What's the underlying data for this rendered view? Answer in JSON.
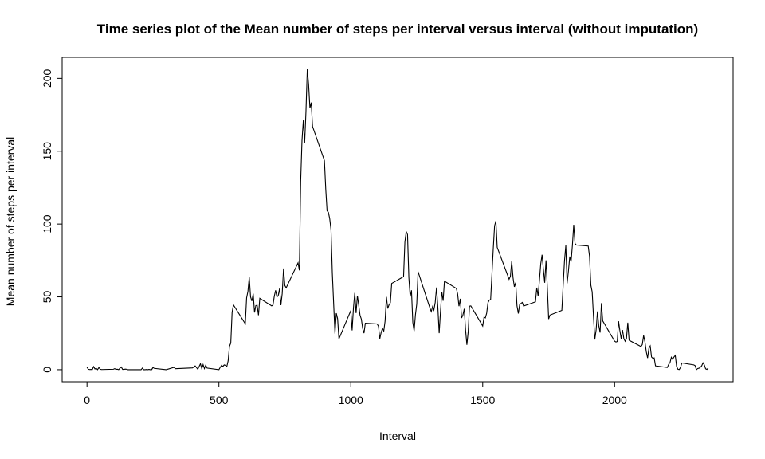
{
  "chart_data": {
    "type": "line",
    "title": "Time series plot of the Mean number of steps per interval versus interval (without imputation)",
    "xlabel": "Interval",
    "ylabel": "Mean number of steps per interval",
    "color": "#000000",
    "xlim": [
      -94.2,
      2449.2
    ],
    "ylim": [
      -8.25,
      214.42
    ],
    "xticks": [
      0,
      500,
      1000,
      1500,
      2000
    ],
    "yticks": [
      0,
      50,
      100,
      150,
      200
    ],
    "x": [
      0,
      5,
      10,
      15,
      20,
      25,
      30,
      35,
      40,
      45,
      50,
      55,
      100,
      105,
      110,
      115,
      120,
      125,
      130,
      135,
      140,
      145,
      150,
      155,
      200,
      205,
      210,
      215,
      220,
      225,
      230,
      235,
      240,
      245,
      250,
      255,
      300,
      330,
      335,
      400,
      410,
      420,
      430,
      435,
      440,
      445,
      450,
      455,
      500,
      505,
      510,
      515,
      520,
      525,
      530,
      535,
      540,
      545,
      550,
      555,
      600,
      605,
      610,
      615,
      620,
      625,
      630,
      635,
      640,
      645,
      650,
      655,
      700,
      705,
      710,
      715,
      720,
      725,
      730,
      735,
      740,
      745,
      750,
      755,
      800,
      805,
      810,
      815,
      820,
      825,
      830,
      835,
      840,
      845,
      850,
      855,
      900,
      905,
      910,
      915,
      920,
      925,
      930,
      935,
      940,
      945,
      950,
      955,
      1000,
      1005,
      1010,
      1015,
      1020,
      1025,
      1030,
      1035,
      1040,
      1045,
      1050,
      1055,
      1100,
      1105,
      1110,
      1115,
      1120,
      1125,
      1130,
      1135,
      1140,
      1145,
      1150,
      1155,
      1200,
      1205,
      1210,
      1215,
      1220,
      1225,
      1230,
      1235,
      1240,
      1245,
      1250,
      1255,
      1300,
      1305,
      1310,
      1315,
      1320,
      1325,
      1330,
      1335,
      1340,
      1345,
      1350,
      1355,
      1400,
      1405,
      1410,
      1415,
      1420,
      1425,
      1430,
      1435,
      1440,
      1445,
      1450,
      1455,
      1500,
      1505,
      1510,
      1515,
      1520,
      1525,
      1530,
      1535,
      1540,
      1545,
      1550,
      1555,
      1600,
      1605,
      1610,
      1615,
      1620,
      1625,
      1630,
      1635,
      1640,
      1645,
      1650,
      1655,
      1700,
      1705,
      1710,
      1715,
      1720,
      1725,
      1730,
      1735,
      1740,
      1745,
      1750,
      1755,
      1800,
      1805,
      1810,
      1815,
      1820,
      1825,
      1830,
      1835,
      1840,
      1845,
      1850,
      1855,
      1900,
      1905,
      1910,
      1915,
      1920,
      1925,
      1930,
      1935,
      1940,
      1945,
      1950,
      1955,
      2000,
      2005,
      2010,
      2015,
      2020,
      2025,
      2030,
      2035,
      2040,
      2045,
      2050,
      2055,
      2100,
      2105,
      2110,
      2115,
      2120,
      2125,
      2130,
      2135,
      2140,
      2145,
      2150,
      2155,
      2200,
      2205,
      2210,
      2215,
      2220,
      2225,
      2230,
      2235,
      2240,
      2245,
      2250,
      2255,
      2300,
      2305,
      2310,
      2315,
      2320,
      2325,
      2330,
      2335,
      2340,
      2345,
      2350,
      2355
    ],
    "values": [
      1.7,
      0.3,
      0.1,
      0.2,
      0.1,
      2.1,
      0.5,
      0.9,
      0,
      1.5,
      0.3,
      0.1,
      0.3,
      0.7,
      0.2,
      0.3,
      0,
      1.1,
      1.8,
      0.2,
      0.2,
      0.4,
      0.3,
      0,
      0,
      0,
      1.1,
      0,
      0,
      0.1,
      0,
      0.2,
      0,
      0,
      1.5,
      0.9,
      0,
      1.6,
      0.7,
      1.2,
      2.6,
      0.3,
      4.1,
      0.7,
      3.5,
      0.8,
      3.1,
      1.1,
      0,
      1.6,
      3,
      2.2,
      3.3,
      3,
      2.1,
      6.1,
      16,
      18.3,
      39.5,
      44.5,
      31.5,
      49.3,
      53.8,
      63.5,
      50,
      47.1,
      52.2,
      39.3,
      44,
      44.2,
      37.4,
      49,
      43.8,
      44.4,
      50.5,
      54.5,
      49.9,
      51,
      55.7,
      44.3,
      52.3,
      69.5,
      57.8,
      56.2,
      73.4,
      68.2,
      129.4,
      157.5,
      171.2,
      155.4,
      177.3,
      206.2,
      195.9,
      179.6,
      183.4,
      167,
      143.5,
      124,
      109.1,
      108.1,
      103.7,
      96,
      66.2,
      45.2,
      24.8,
      38.8,
      35,
      21.1,
      40.6,
      27,
      42.4,
      52.7,
      38.9,
      50.8,
      44.3,
      37.4,
      34.7,
      28.3,
      25.1,
      31.9,
      31.4,
      29.7,
      21.3,
      25.5,
      28.4,
      26.5,
      33.4,
      50,
      42,
      44.6,
      46,
      59.2,
      63.9,
      87.7,
      94.8,
      92.8,
      63.4,
      50.2,
      54.5,
      32.4,
      26.5,
      37.7,
      45.1,
      67.3,
      42.3,
      39.9,
      43.3,
      41,
      46.2,
      56.4,
      42.8,
      25.1,
      40,
      53.5,
      47.3,
      60.8,
      55.8,
      52,
      43.6,
      48.7,
      35.5,
      37.5,
      41.8,
      27.5,
      17.1,
      26.1,
      43.6,
      43.8,
      30,
      36.1,
      35.5,
      38.8,
      46,
      47.8,
      48.1,
      65.3,
      82.9,
      98.7,
      102.1,
      84,
      62.1,
      64.1,
      74.5,
      63.2,
      56.9,
      59.8,
      43.9,
      38.6,
      44.7,
      45.5,
      46.2,
      43.7,
      46.6,
      56.3,
      50.7,
      61.2,
      72.7,
      78.9,
      68.9,
      59.7,
      75.1,
      56.5,
      34.8,
      37.5,
      40.7,
      58,
      74.7,
      85.3,
      59.3,
      67.8,
      77.7,
      74.2,
      85.3,
      99.5,
      86.6,
      85.6,
      84.9,
      77.8,
      58,
      53.4,
      36.3,
      20.7,
      27.4,
      40,
      30.2,
      25.5,
      45.7,
      33.5,
      19.6,
      19,
      19.3,
      33.3,
      26.8,
      21.2,
      27.3,
      21.3,
      19.5,
      21.3,
      32.3,
      20.2,
      15.9,
      17.2,
      23.5,
      19.2,
      12.5,
      8,
      14.7,
      16.3,
      8.7,
      7.8,
      8.1,
      2.6,
      1.5,
      3.7,
      4.8,
      8.5,
      7.1,
      8.7,
      9.8,
      2.2,
      0.3,
      0.1,
      1.6,
      4.6,
      3.3,
      2.8,
      0,
      0.8,
      1,
      1.6,
      2.6,
      4.7,
      3.3,
      0.6,
      0.2,
      1.1
    ]
  }
}
